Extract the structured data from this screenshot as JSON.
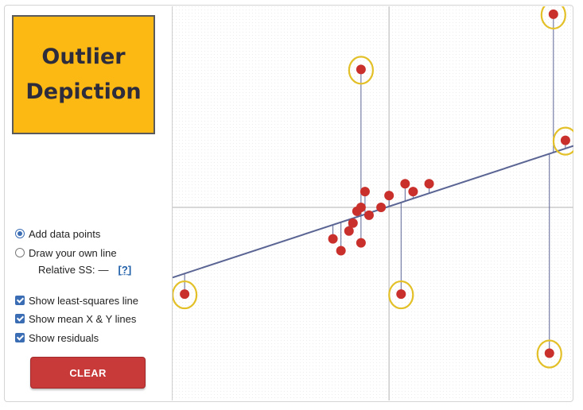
{
  "title": {
    "line1": "Outlier",
    "line2": "Depiction"
  },
  "controls": {
    "mode_add": "Add data points",
    "mode_draw": "Draw your own line",
    "relative_ss_label": "Relative SS:",
    "relative_ss_value": "—",
    "help_link": "[?]",
    "show_ls_line": "Show least-squares line",
    "show_mean_lines": "Show mean X & Y lines",
    "show_residuals": "Show residuals",
    "selected_mode": "Add data points",
    "checked": [
      "Show least-squares line",
      "Show mean X & Y lines",
      "Show residuals"
    ]
  },
  "clear_button": {
    "label": "CLEAR"
  },
  "colors": {
    "title_bg": "#fcb813",
    "point": "#c9302c",
    "regression_line": "#5b6594",
    "mean_lines": "#cccccc",
    "outlier_highlight": "#e3c027",
    "clear_button": "#c8393a"
  },
  "plot": {
    "x_range": [
      0,
      100
    ],
    "y_range": [
      0,
      100
    ],
    "mean_x": 54,
    "mean_y": 49,
    "line": {
      "slope": 0.334,
      "intercept": 31.2
    },
    "points": [
      {
        "x": 3,
        "y": 27,
        "highlight": true
      },
      {
        "x": 47,
        "y": 84,
        "highlight": true
      },
      {
        "x": 57,
        "y": 27,
        "highlight": true
      },
      {
        "x": 94,
        "y": 12,
        "highlight": true
      },
      {
        "x": 95,
        "y": 98,
        "highlight": true
      },
      {
        "x": 98,
        "y": 66,
        "highlight": true
      },
      {
        "x": 40,
        "y": 41
      },
      {
        "x": 42,
        "y": 38
      },
      {
        "x": 44,
        "y": 43
      },
      {
        "x": 45,
        "y": 45
      },
      {
        "x": 46,
        "y": 48
      },
      {
        "x": 47,
        "y": 49
      },
      {
        "x": 47,
        "y": 40
      },
      {
        "x": 48,
        "y": 53
      },
      {
        "x": 49,
        "y": 47
      },
      {
        "x": 52,
        "y": 49
      },
      {
        "x": 54,
        "y": 52
      },
      {
        "x": 58,
        "y": 55
      },
      {
        "x": 60,
        "y": 53
      },
      {
        "x": 64,
        "y": 55
      }
    ]
  }
}
